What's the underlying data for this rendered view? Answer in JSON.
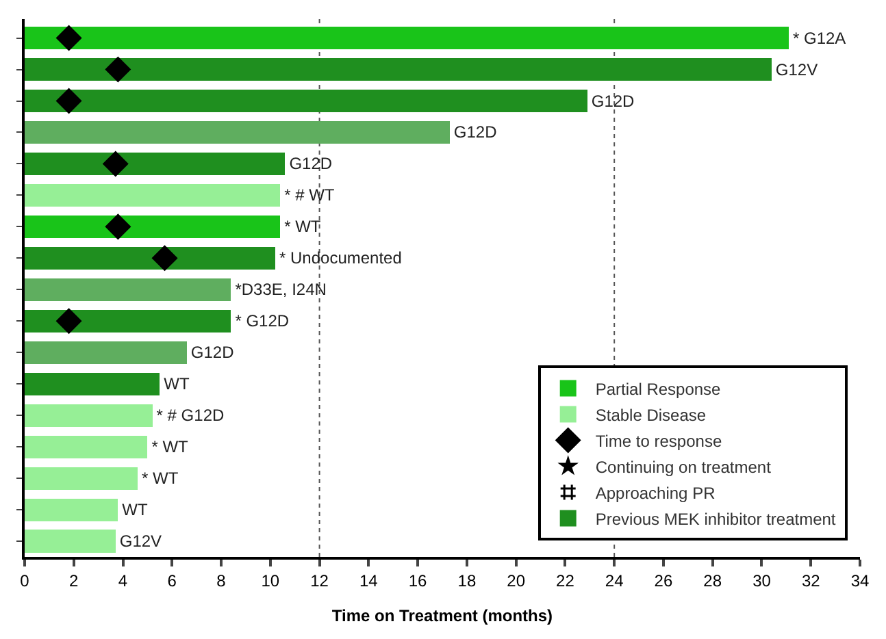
{
  "chart_data": {
    "type": "bar",
    "orientation": "horizontal",
    "stacked": true,
    "xlabel": "Time on Treatment (months)",
    "categories": [
      null,
      null,
      null,
      null,
      null,
      null,
      null,
      null,
      null,
      null,
      null,
      null,
      null,
      null,
      null,
      null,
      null
    ],
    "series": [
      {
        "name": "Partial Response",
        "color": "#19c419",
        "values": [
          31.1,
          null,
          null,
          null,
          null,
          null,
          10.4,
          null,
          null,
          null,
          null,
          null,
          null,
          null,
          null,
          null,
          null
        ],
        "value_labels": [
          "* G12A",
          null,
          null,
          null,
          null,
          null,
          "* WT",
          null,
          null,
          null,
          null,
          null,
          null,
          null,
          null,
          null,
          null
        ]
      },
      {
        "name": "Stable Disease",
        "color": "#96ef96",
        "values": [
          null,
          null,
          null,
          null,
          null,
          10.4,
          null,
          null,
          null,
          null,
          null,
          null,
          5.2,
          5.0,
          4.6,
          3.8,
          3.7
        ],
        "value_labels": [
          null,
          null,
          null,
          null,
          null,
          "* # WT",
          null,
          null,
          null,
          null,
          null,
          null,
          "* # G12D",
          "* WT",
          "* WT",
          "WT",
          "G12V"
        ]
      },
      {
        "type": "scatter",
        "name": "Time to response",
        "marker": "diamond",
        "color": "#000000",
        "values": [
          1.8,
          3.8,
          1.8,
          null,
          3.7,
          null,
          3.8,
          5.7,
          null,
          1.8,
          null,
          null,
          null,
          null,
          null,
          null,
          null
        ]
      },
      {
        "type": "scatter",
        "name": "Continuing on treatment",
        "marker": "star",
        "color": "#000000",
        "values": [
          null,
          null,
          null,
          null,
          null,
          null,
          null,
          null,
          null,
          null,
          null,
          null,
          null,
          null,
          null,
          null,
          null
        ]
      },
      {
        "type": "scatter",
        "name": "Approaching PR",
        "marker": "hash",
        "color": "#000000",
        "values": [
          null,
          null,
          null,
          null,
          null,
          null,
          null,
          null,
          null,
          null,
          null,
          null,
          null,
          null,
          null,
          null,
          null
        ]
      },
      {
        "name": "Previous MEK inhibitor treatment",
        "color": "#1f8f1f",
        "values": [
          null,
          30.4,
          22.9,
          null,
          10.6,
          null,
          null,
          10.2,
          null,
          8.4,
          null,
          5.5,
          null,
          null,
          null,
          null,
          null
        ],
        "value_labels": [
          null,
          "G12V",
          "G12D",
          null,
          "G12D",
          null,
          null,
          "* Undocumented",
          null,
          "* G12D",
          null,
          "WT",
          null,
          null,
          null,
          null,
          null
        ]
      },
      {
        "color": "#5fae5f",
        "values": [
          null,
          null,
          null,
          17.3,
          null,
          null,
          null,
          null,
          8.4,
          null,
          6.6,
          null,
          null,
          null,
          null,
          null,
          null
        ],
        "value_labels": [
          null,
          null,
          null,
          "G12D",
          null,
          null,
          null,
          null,
          "*D33E, I24N",
          null,
          "G12D",
          null,
          null,
          null,
          null,
          null,
          null
        ]
      }
    ],
    "xlim": [
      0,
      34
    ],
    "xticks": [
      0,
      2,
      4,
      6,
      8,
      10,
      12,
      14,
      16,
      18,
      20,
      22,
      24,
      26,
      28,
      30,
      32,
      34
    ],
    "ref_lines": [
      {
        "axis": "x",
        "value": 12,
        "line_style": "dotted",
        "color": "#555555"
      },
      {
        "axis": "x",
        "value": 24,
        "line_style": "dotted",
        "color": "#555555"
      }
    ],
    "grid": false,
    "legend": "bottom right"
  }
}
